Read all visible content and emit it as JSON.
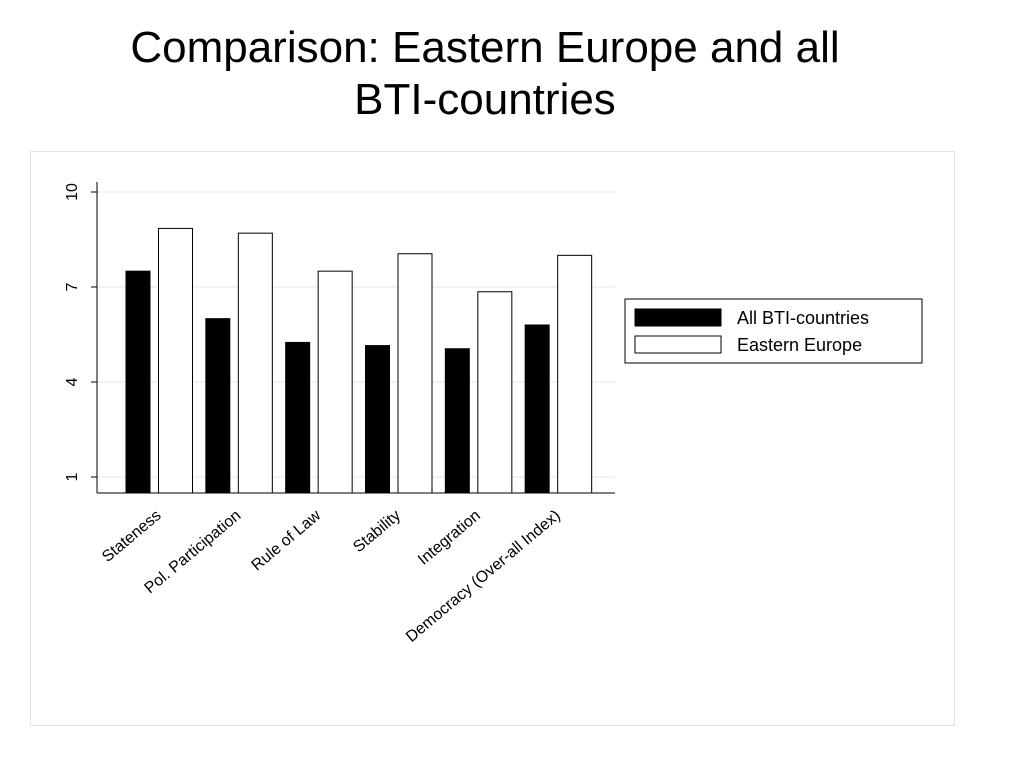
{
  "slide": {
    "title_line1": "Comparison: Eastern Europe and all",
    "title_line2": "BTI-countries"
  },
  "chart_data": {
    "type": "bar",
    "categories": [
      "Stateness",
      "Pol. Participation",
      "Rule of Law",
      "Stability",
      "Integration",
      "Democracy (Over-all Index)"
    ],
    "series": [
      {
        "name": "All BTI-countries",
        "values": [
          7.5,
          6.0,
          5.25,
          5.15,
          5.05,
          5.8
        ],
        "color": "#000000"
      },
      {
        "name": "Eastern Europe",
        "values": [
          8.85,
          8.7,
          7.5,
          8.05,
          6.85,
          8.0
        ],
        "color": "#ffffff"
      }
    ],
    "yticks": [
      1,
      4,
      7,
      10
    ],
    "ylim": [
      0.5,
      10
    ],
    "grid": true,
    "legend_position": "right"
  }
}
